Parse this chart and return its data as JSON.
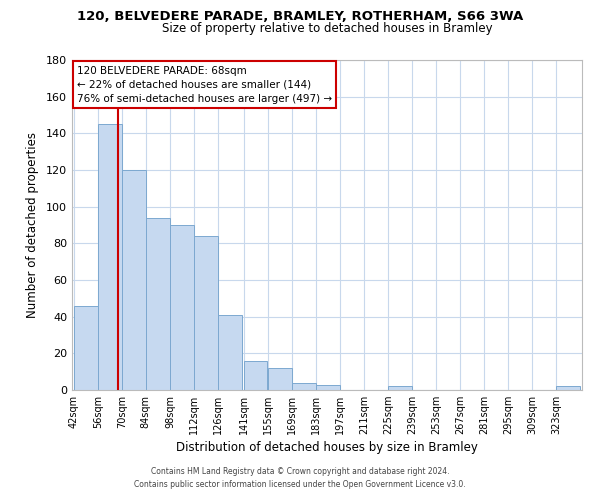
{
  "title1": "120, BELVEDERE PARADE, BRAMLEY, ROTHERHAM, S66 3WA",
  "title2": "Size of property relative to detached houses in Bramley",
  "xlabel": "Distribution of detached houses by size in Bramley",
  "ylabel": "Number of detached properties",
  "bar_edges": [
    42,
    56,
    70,
    84,
    98,
    112,
    126,
    141,
    155,
    169,
    183,
    197,
    211,
    225,
    239,
    253,
    267,
    281,
    295,
    309,
    323
  ],
  "bar_heights": [
    46,
    145,
    120,
    94,
    90,
    84,
    41,
    16,
    12,
    4,
    3,
    0,
    0,
    2,
    0,
    0,
    0,
    0,
    0,
    0,
    2
  ],
  "bar_color": "#c6d9f0",
  "bar_edge_color": "#7ca8d0",
  "vline_color": "#cc0000",
  "vline_x": 68,
  "annotation_title": "120 BELVEDERE PARADE: 68sqm",
  "annotation_line1": "← 22% of detached houses are smaller (144)",
  "annotation_line2": "76% of semi-detached houses are larger (497) →",
  "ylim": [
    0,
    180
  ],
  "yticks": [
    0,
    20,
    40,
    60,
    80,
    100,
    120,
    140,
    160,
    180
  ],
  "tick_labels": [
    "42sqm",
    "56sqm",
    "70sqm",
    "84sqm",
    "98sqm",
    "112sqm",
    "126sqm",
    "141sqm",
    "155sqm",
    "169sqm",
    "183sqm",
    "197sqm",
    "211sqm",
    "225sqm",
    "239sqm",
    "253sqm",
    "267sqm",
    "281sqm",
    "295sqm",
    "309sqm",
    "323sqm"
  ],
  "footer1": "Contains HM Land Registry data © Crown copyright and database right 2024.",
  "footer2": "Contains public sector information licensed under the Open Government Licence v3.0.",
  "bg_color": "#ffffff",
  "grid_color": "#c8d8ec"
}
